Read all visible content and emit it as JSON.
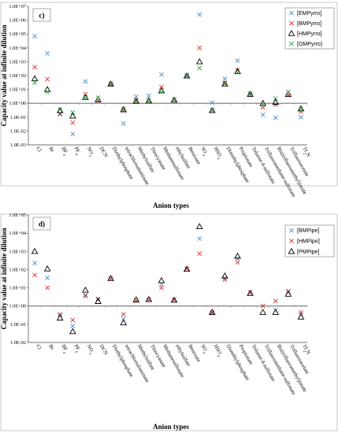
{
  "chart_data": [
    {
      "type": "scatter",
      "panel_label": "c)",
      "xlabel": "Anion types",
      "ylabel": "Capacity value at infinite dilution",
      "y_scale": "log",
      "ylim": [
        0.001,
        10000000
      ],
      "y_tick_labels": [
        "1.0E-03",
        "1.0E-02",
        "1.0E-01",
        "1.0E+00",
        "1.0E+01",
        "1.0E+02",
        "1.0E+03",
        "1.0E+04",
        "1.0E+05",
        "1.0E+06",
        "1.0E+07"
      ],
      "reference_line_y": 1,
      "legend_position": "top-right",
      "categories": [
        "Cl",
        "Br",
        "BF4",
        "PF6",
        "NO3",
        "DCN",
        "Diethylphosphate",
        "tetrachloroaluminate",
        "Methylsulfate",
        "Thiocyanate",
        "Methanesulfonate",
        "ethylsulfate",
        "Benzoate",
        "SO4",
        "HSO4",
        "Dimethylphosphate",
        "Propionate",
        "Toluene-4-sulfonate",
        "Trifluoromethane-sulfonate",
        "Bis(trifluoromethyl)imide",
        "Trifluoroacetate",
        "Tf2N"
      ],
      "series": [
        {
          "name": "[EMPyrro]",
          "marker": "x",
          "color": "#4a8fd0",
          "values": [
            70000,
            4000,
            0.18,
            0.006,
            38,
            1.6,
            22,
            0.035,
            3,
            3.5,
            120,
            1.8,
            90,
            2500000,
            1.1,
            60,
            1200,
            4,
            0.15,
            0.09,
            3.8,
            0.1
          ]
        },
        {
          "name": "[BMPyrro]",
          "marker": "x",
          "color": "#e03030",
          "values": [
            400,
            55,
            0.16,
            0.04,
            4.5,
            1.6,
            22,
            0.3,
            1.6,
            1.5,
            15,
            1.8,
            100,
            10000,
            0.3,
            25,
            250,
            5,
            0.5,
            0.8,
            4,
            0.25
          ]
        },
        {
          "name": "[HMPyrro]",
          "marker": "triangle",
          "color": "#000000",
          "values": [
            60,
            10,
            0.3,
            0.12,
            2.6,
            1.8,
            25,
            0.35,
            1.4,
            1.5,
            8,
            1.7,
            95,
            1000,
            0.3,
            25,
            200,
            4.5,
            1,
            1.2,
            4.5,
            0.4
          ]
        },
        {
          "name": "[OMPyrro]",
          "marker": "x",
          "color": "#2e9e3a",
          "values": [
            30,
            6.5,
            0.35,
            0.22,
            2.5,
            2.6,
            26,
            0.4,
            1.4,
            1.5,
            7,
            1.8,
            100,
            350,
            0.3,
            28,
            170,
            5,
            0.8,
            2.2,
            6.5,
            0.4
          ]
        }
      ]
    },
    {
      "type": "scatter",
      "panel_label": "d)",
      "xlabel": "Anion types",
      "ylabel": "Capacity value at infinite dilution",
      "y_scale": "log",
      "ylim": [
        0.01,
        100000
      ],
      "y_tick_labels": [
        "1.0E-02",
        "1.0E-01",
        "1.0E+00",
        "1.0E+01",
        "1.0E+02",
        "1.0E+03",
        "1.0E+04",
        "1.0E+05"
      ],
      "reference_line_y": 1,
      "legend_position": "top-right",
      "categories": [
        "Cl",
        "Br",
        "BF4",
        "PF6",
        "NO3",
        "DCN",
        "Diethylphosphate",
        "tetrachloroaluminate",
        "Methylsulfate",
        "Thiocyanate",
        "Methanesulfonate",
        "ethylsulfate",
        "Benzoate",
        "SO4",
        "HSO4",
        "Dimethylphosphate",
        "Propionate",
        "Toluene-4-sulfonate",
        "Trifluoromethane-sulfonate",
        "Bis(trifluoromethyl)imide",
        "Trifluoroacetate",
        "Tf2N"
      ],
      "series": [
        {
          "name": "[BMPipe]",
          "marker": "x",
          "color": "#4a8fd0",
          "values": [
            230,
            35,
            0.3,
            0.08,
            4,
            2.2,
            32,
            0.2,
            2,
            2.2,
            15,
            2.2,
            110,
            5000,
            0.4,
            35,
            400,
            5.5,
            1,
            0.6,
            6,
            0.35
          ]
        },
        {
          "name": "[HMPipe]",
          "marker": "x",
          "color": "#e03030",
          "values": [
            50,
            10,
            0.35,
            0.17,
            3.5,
            2.5,
            32,
            0.35,
            2,
            2.2,
            10,
            2.2,
            110,
            750,
            0.45,
            28,
            250,
            5.5,
            1,
            1.9,
            6.5,
            0.45
          ]
        },
        {
          "name": "[PMPipe]",
          "marker": "triangle",
          "color": "#000000",
          "values": [
            1000,
            110,
            0.22,
            0.04,
            7.5,
            1.8,
            33,
            0.12,
            2.2,
            2.3,
            25,
            2.1,
            105,
            23000,
            0.45,
            45,
            550,
            5,
            0.45,
            0.45,
            4.5,
            0.25
          ]
        }
      ]
    }
  ]
}
